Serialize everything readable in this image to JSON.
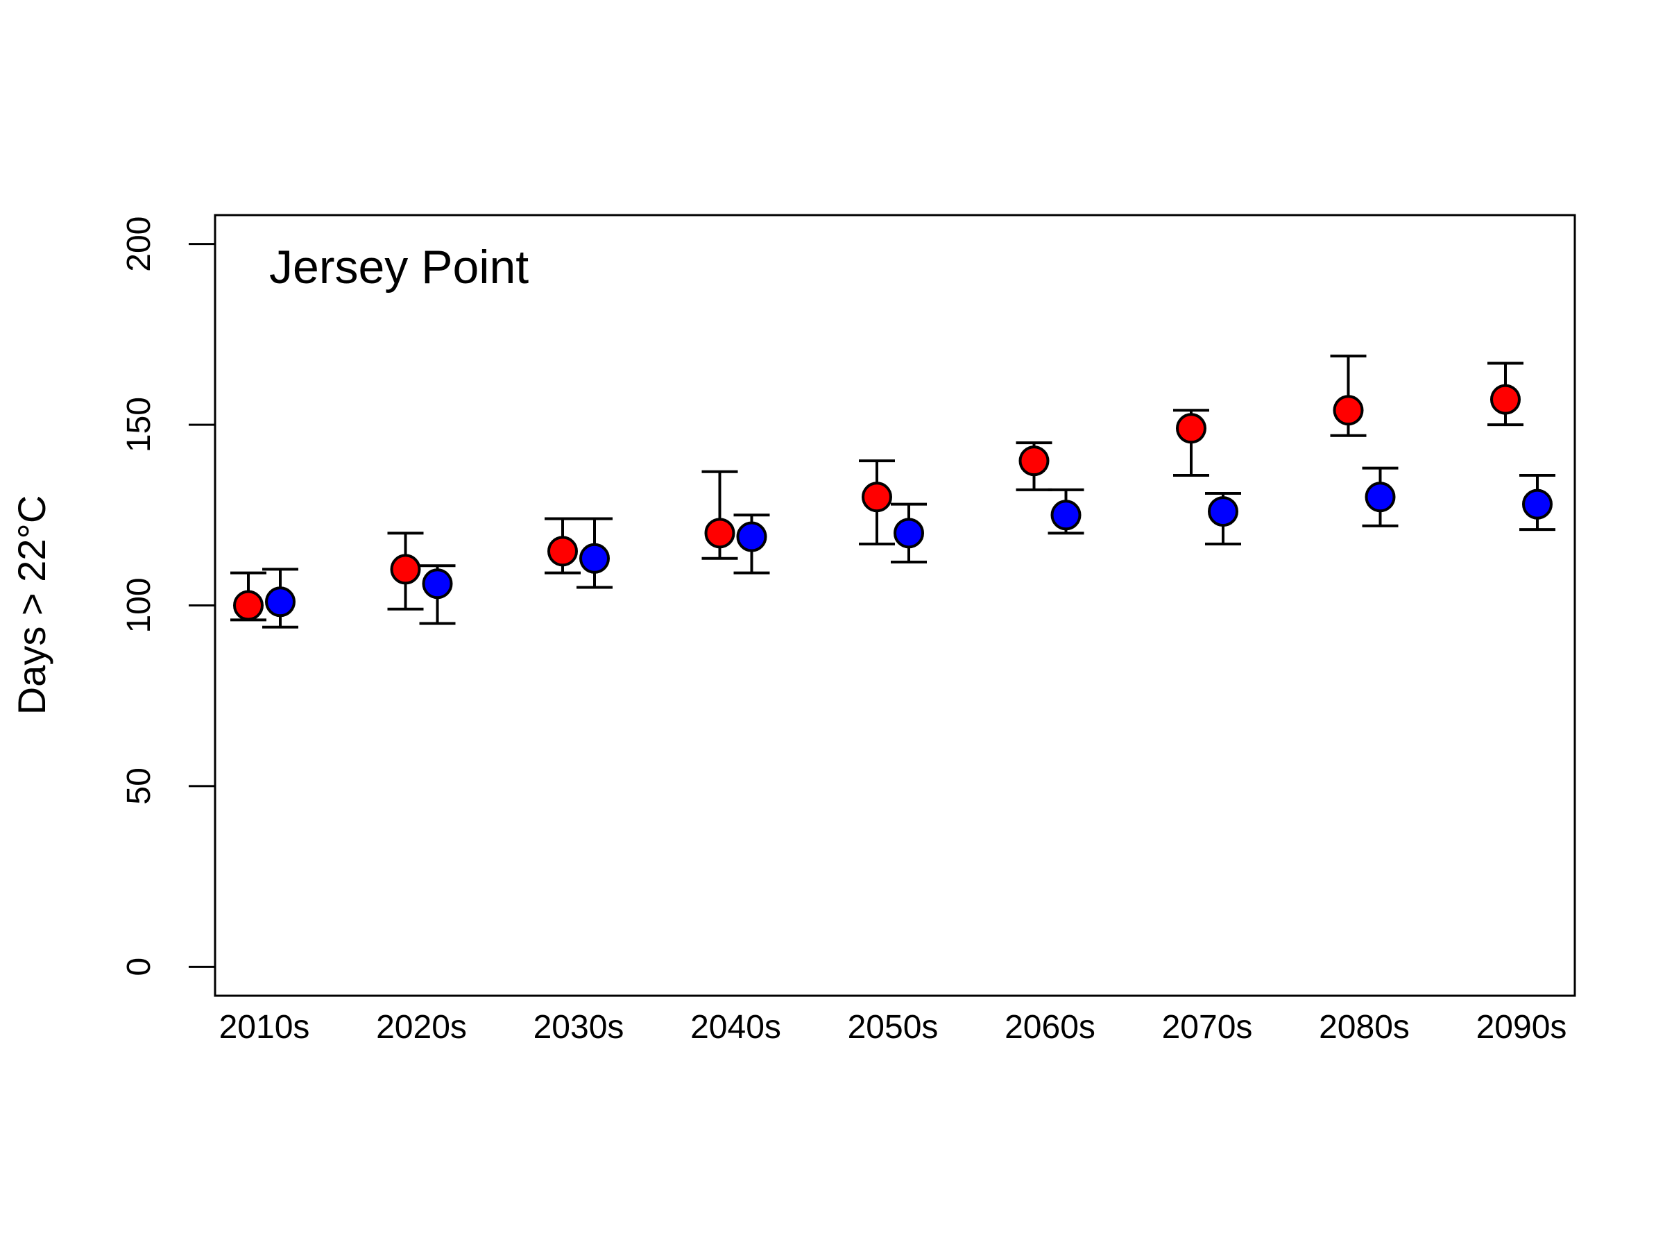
{
  "chart_data": {
    "type": "scatter",
    "panel_label": "Jersey Point",
    "xlabel": "",
    "ylabel": "Days > 22°C",
    "ylim": [
      -8,
      208
    ],
    "yticks": [
      0,
      50,
      100,
      150,
      200
    ],
    "categories": [
      "2010s",
      "2020s",
      "2030s",
      "2040s",
      "2050s",
      "2060s",
      "2070s",
      "2080s",
      "2090s"
    ],
    "series": [
      {
        "color": "#ff0000",
        "values": [
          100,
          110,
          115,
          120,
          130,
          140,
          149,
          154,
          157
        ],
        "lower": [
          96,
          99,
          109,
          113,
          117,
          132,
          136,
          147,
          150
        ],
        "upper": [
          109,
          120,
          124,
          137,
          140,
          145,
          154,
          169,
          167
        ]
      },
      {
        "color": "#0000ff",
        "values": [
          101,
          106,
          113,
          119,
          120,
          125,
          126,
          130,
          128
        ],
        "lower": [
          94,
          95,
          105,
          109,
          112,
          120,
          117,
          122,
          121
        ],
        "upper": [
          110,
          111,
          124,
          125,
          128,
          132,
          131,
          138,
          136
        ]
      }
    ],
    "grid": false,
    "legend": "none"
  }
}
